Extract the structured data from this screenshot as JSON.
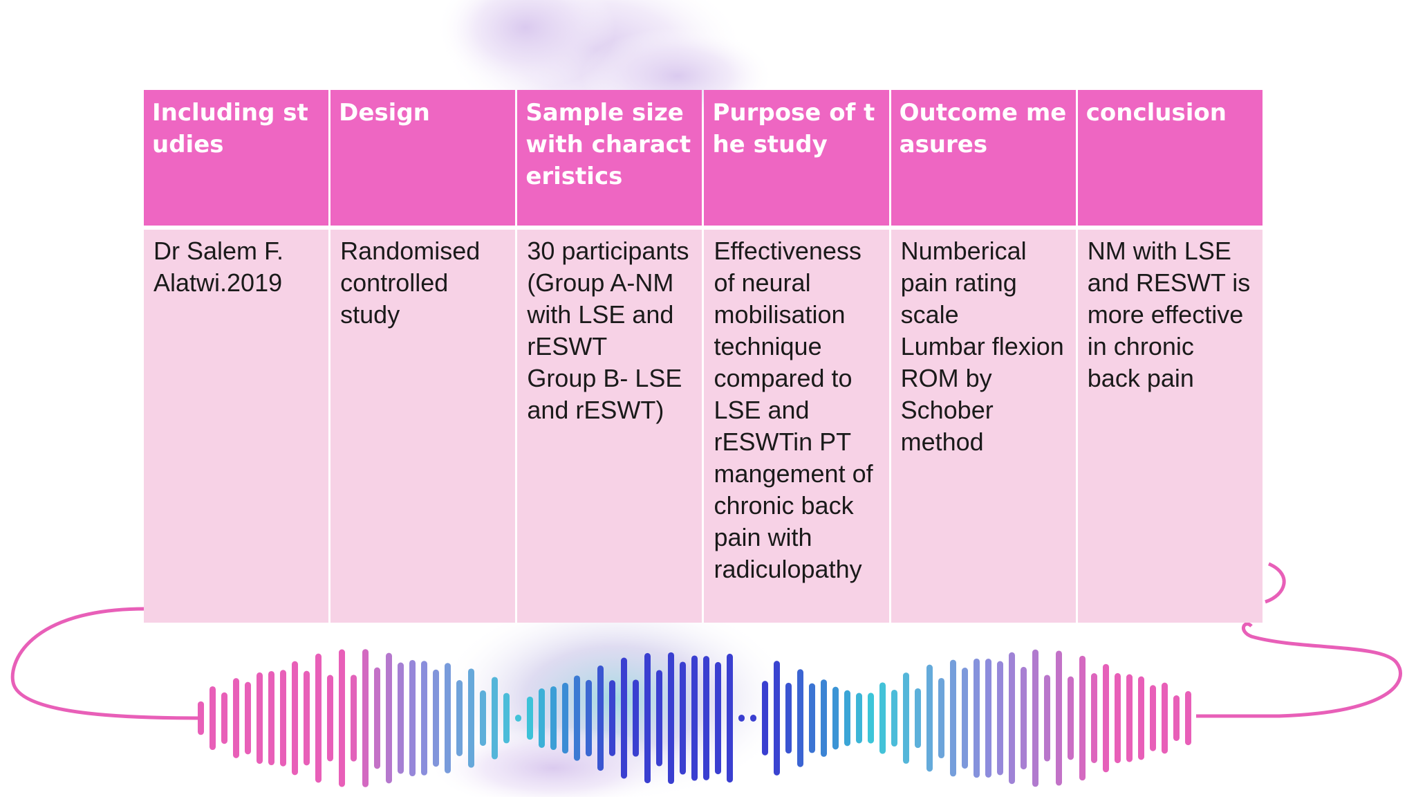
{
  "table": {
    "headers": [
      "Including studies",
      "Design",
      "Sample size with characteristics",
      "Purpose of the study",
      "Outcome measures",
      "conclusion"
    ],
    "row": [
      "Dr Salem F. Alatwi.2019",
      "Randomised controlled study",
      "30 participants (Group A-NM with LSE and rESWT\nGroup B- LSE and rESWT)",
      "Effectiveness of neural mobilisation technique compared to LSE and rESWTin PT mangement of chronic back pain with radiculopathy",
      "Numberical pain rating scale\nLumbar flexion ROM by Schober method",
      "NM with LSE and RESWT is more effective in chronic back pain"
    ]
  },
  "colors": {
    "header_bg": "#ee66c2",
    "cell_bg": "#f7d2e6",
    "header_text": "#ffffff",
    "cell_text": "#1a1a1a",
    "wave_pink": "#e85fb8",
    "wave_violet": "#8f8bdc",
    "wave_cyan": "#3cc7d8",
    "wave_blue": "#3a3fd0"
  },
  "decorations": {
    "background": "watercolor-smoke-image",
    "waveform": "sound-wave-icon",
    "curve": "audio-cable-line"
  }
}
